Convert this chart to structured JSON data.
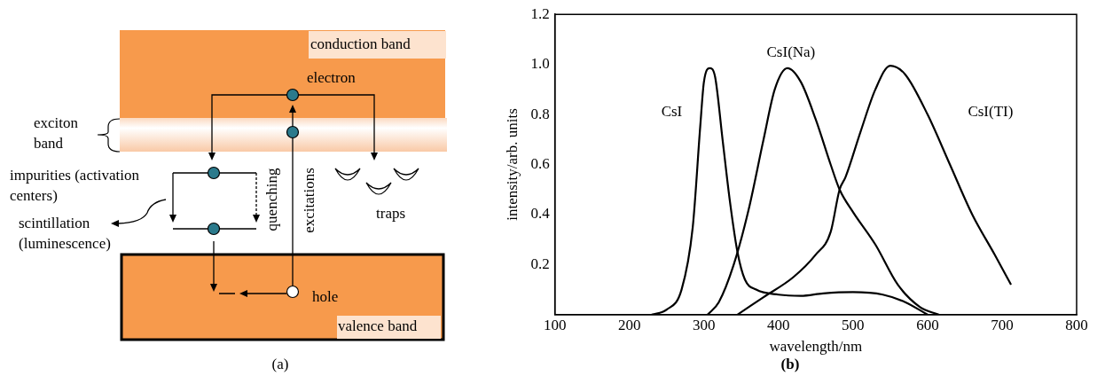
{
  "chart_data": [
    {
      "type": "other",
      "title": "(a)",
      "annotations": [
        "conduction band",
        "electron",
        "exciton band",
        "impurities (activation centers)",
        "scintillation (luminescence)",
        "quenching",
        "excitations",
        "traps",
        "hole",
        "valence band"
      ]
    },
    {
      "type": "line",
      "title": "(b)",
      "xlabel": "wavelength/nm",
      "ylabel": "intensity/arb. units",
      "xlim": [
        100,
        800
      ],
      "xticks": [
        100,
        200,
        300,
        400,
        500,
        600,
        700,
        800
      ],
      "ylim": [
        0,
        1.2
      ],
      "yticks": [
        0.2,
        0.4,
        0.6,
        {
          "value": 0.8,
          "label": "0.8"
        },
        {
          "value": 1,
          "label": "1.0"
        },
        1.2
      ],
      "grid": false,
      "legend": false,
      "marker": "none",
      "line_style": "solid",
      "series": [
        {
          "name": "CsI",
          "color": "#000000",
          "x": [
            230,
            250,
            270,
            285,
            295,
            300,
            308,
            315,
            325,
            335,
            345,
            355,
            370,
            400,
            430,
            460,
            500,
            540,
            570,
            600
          ],
          "values": [
            0,
            0.02,
            0.1,
            0.35,
            0.75,
            0.93,
            0.985,
            0.95,
            0.7,
            0.45,
            0.25,
            0.14,
            0.1,
            0.08,
            0.075,
            0.085,
            0.09,
            0.08,
            0.05,
            0
          ]
        },
        {
          "name": "CsI(Na)",
          "color": "#000000",
          "x": [
            305,
            320,
            340,
            360,
            380,
            395,
            412,
            430,
            450,
            470,
            482,
            500,
            530,
            560,
            590,
            615
          ],
          "values": [
            0,
            0.05,
            0.2,
            0.42,
            0.7,
            0.9,
            0.985,
            0.93,
            0.78,
            0.6,
            0.5,
            0.41,
            0.28,
            0.12,
            0.03,
            0
          ]
        },
        {
          "name": "CsI(TI)",
          "color": "#000000",
          "x": [
            345,
            380,
            420,
            450,
            470,
            482,
            490,
            510,
            530,
            550,
            570,
            600,
            630,
            660,
            690,
            712
          ],
          "values": [
            0,
            0.07,
            0.15,
            0.24,
            0.33,
            0.5,
            0.55,
            0.73,
            0.9,
            0.995,
            0.96,
            0.8,
            0.6,
            0.4,
            0.24,
            0.12
          ]
        }
      ]
    }
  ]
}
